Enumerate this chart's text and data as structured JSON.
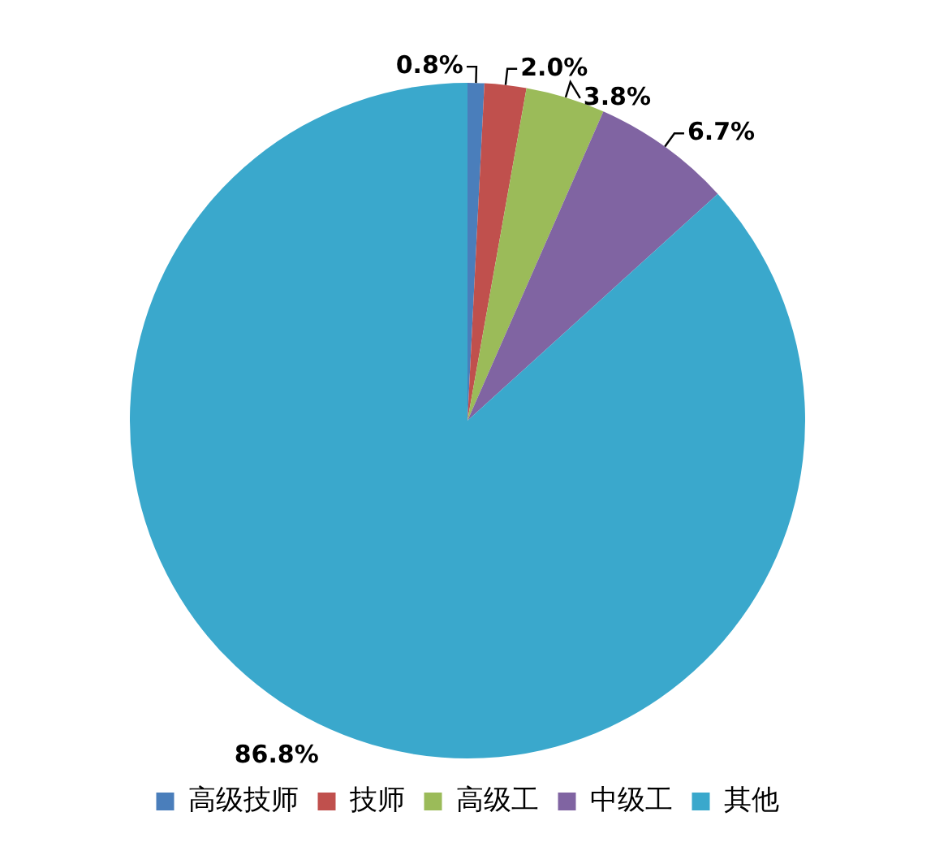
{
  "chart_data": {
    "type": "pie",
    "categories": [
      "高级技师",
      "技师",
      "高级工",
      "中级工",
      "其他"
    ],
    "values": [
      0.8,
      2.0,
      3.8,
      6.7,
      86.8
    ],
    "colors": [
      "#4a7ebb",
      "#c0504d",
      "#9bbb59",
      "#8064a2",
      "#3aa8cc"
    ],
    "value_labels": [
      "0.8%",
      "2.0%",
      "3.8%",
      "6.7%",
      "86.8%"
    ],
    "legend": "bottom"
  }
}
